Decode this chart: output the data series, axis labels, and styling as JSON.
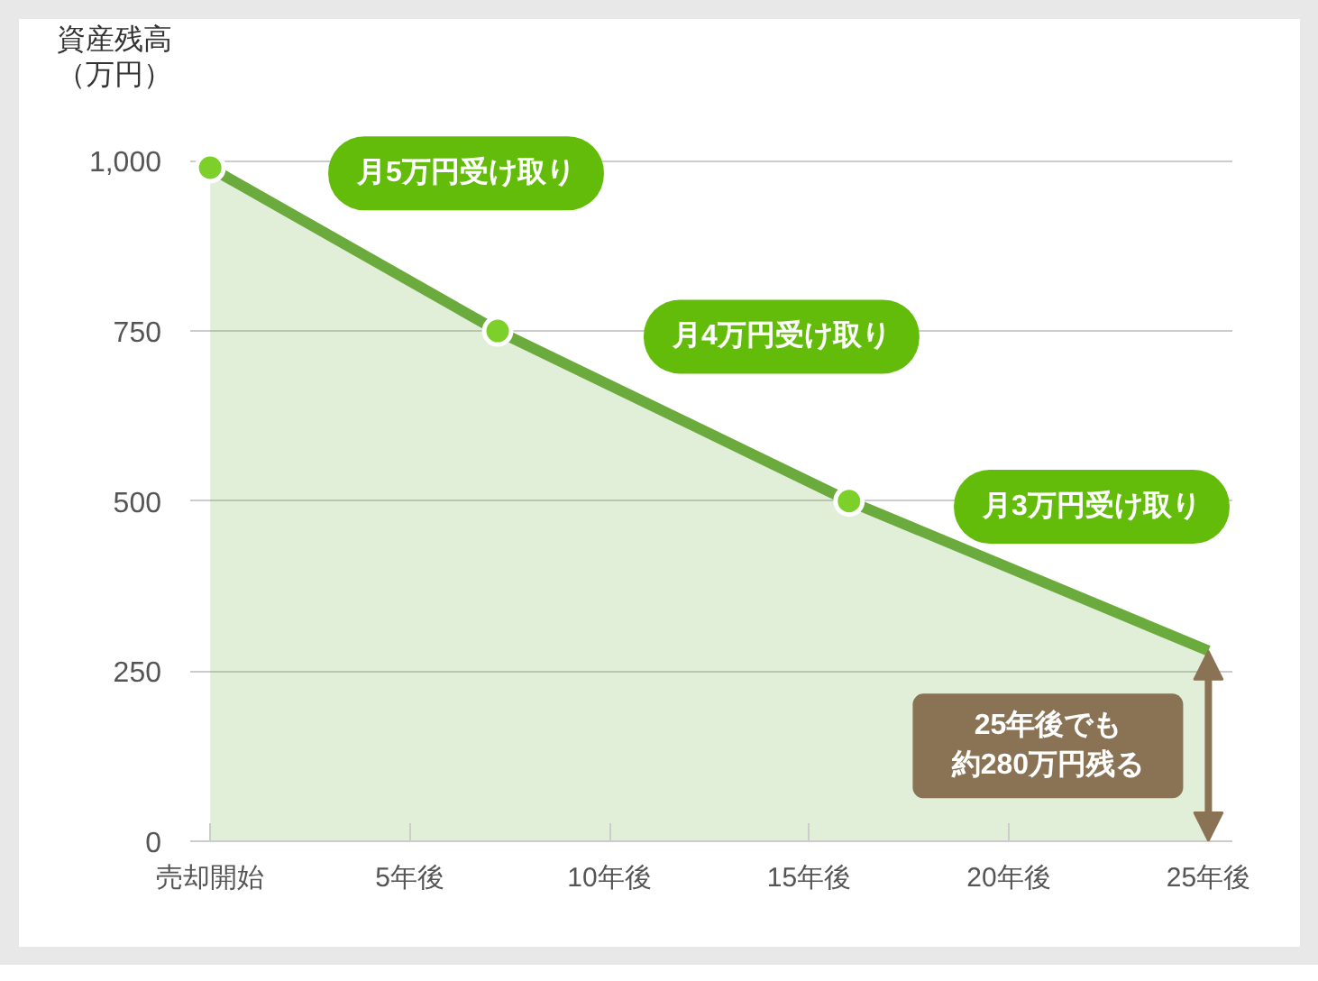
{
  "chart_data": {
    "type": "area",
    "ylabel": "資産残高（万円）",
    "xlim": [
      -0.5,
      25.6
    ],
    "xticks": [
      {
        "value": 0,
        "label": "売却開始"
      },
      {
        "value": 5,
        "label": "5年後"
      },
      {
        "value": 10,
        "label": "10年後"
      },
      {
        "value": 15,
        "label": "15年後"
      },
      {
        "value": 20,
        "label": "20年後"
      },
      {
        "value": 25,
        "label": "25年後"
      }
    ],
    "ylim": [
      0,
      1100
    ],
    "yticks": [
      0,
      250,
      500,
      750,
      {
        "value": 1000,
        "label": "1,000"
      }
    ],
    "grid": "y",
    "series": [
      {
        "color": "#6bab3d",
        "x": [
          0,
          7.2,
          16,
          25
        ],
        "values": [
          990,
          750,
          500,
          280
        ]
      },
      {
        "type": "scatter",
        "marker": "circle",
        "color": "#7dcf2a",
        "x": [
          0,
          7.2,
          16
        ],
        "values": [
          990,
          750,
          500
        ]
      }
    ],
    "annotations": [
      {
        "text": "月5万円受け取り",
        "x": 3.7,
        "y": 865
      },
      {
        "text": "月4万円受け取り",
        "x": 11.6,
        "y": 625
      },
      {
        "text": "月3万円受け取り",
        "x": 21.1,
        "y": 375
      },
      "25年後でも約280万円残る"
    ]
  }
}
